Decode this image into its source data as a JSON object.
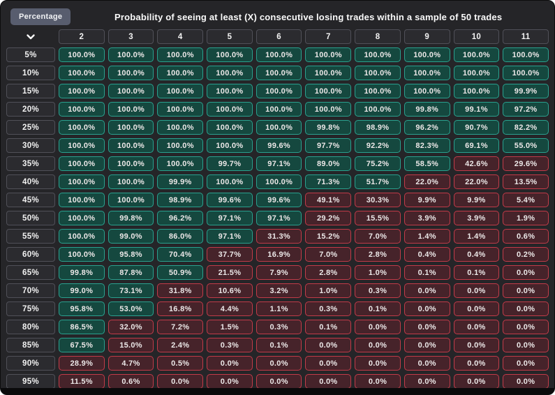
{
  "header": {
    "title": "Probability of seeing at least (X) consecutive losing trades within a sample of 50 trades"
  },
  "toolbar": {
    "percentage_button": "Percentage",
    "column_selector_icon": "chevron-down-icon"
  },
  "colors": {
    "background": "#252528",
    "label_fill": "#2b2b2f",
    "label_border": "#505058",
    "high_fill": "#15483f",
    "high_border": "#2aa18f",
    "low_fill": "#46232a",
    "low_border": "#c23b49",
    "cell_text": "#ece8e8",
    "accent_button": "#585d6e"
  },
  "chart_data": {
    "type": "heatmap",
    "title": "Probability of seeing at least (X) consecutive losing trades within a sample of 50 trades",
    "x_categories": [
      "2",
      "3",
      "4",
      "5",
      "6",
      "7",
      "8",
      "9",
      "10",
      "11"
    ],
    "y_categories": [
      "5%",
      "10%",
      "15%",
      "20%",
      "25%",
      "30%",
      "35%",
      "40%",
      "45%",
      "50%",
      "55%",
      "60%",
      "65%",
      "70%",
      "75%",
      "80%",
      "85%",
      "90%",
      "95%"
    ],
    "value_unit": "percent",
    "color_rule": "value >= 50 teal, value < 50 red",
    "values_percent": [
      [
        100.0,
        100.0,
        100.0,
        100.0,
        100.0,
        100.0,
        100.0,
        100.0,
        100.0,
        100.0
      ],
      [
        100.0,
        100.0,
        100.0,
        100.0,
        100.0,
        100.0,
        100.0,
        100.0,
        100.0,
        100.0
      ],
      [
        100.0,
        100.0,
        100.0,
        100.0,
        100.0,
        100.0,
        100.0,
        100.0,
        100.0,
        99.9
      ],
      [
        100.0,
        100.0,
        100.0,
        100.0,
        100.0,
        100.0,
        100.0,
        99.8,
        99.1,
        97.2
      ],
      [
        100.0,
        100.0,
        100.0,
        100.0,
        100.0,
        99.8,
        98.9,
        96.2,
        90.7,
        82.2
      ],
      [
        100.0,
        100.0,
        100.0,
        100.0,
        99.6,
        97.7,
        92.2,
        82.3,
        69.1,
        55.0
      ],
      [
        100.0,
        100.0,
        100.0,
        99.7,
        97.1,
        89.0,
        75.2,
        58.5,
        42.6,
        29.6
      ],
      [
        100.0,
        100.0,
        99.9,
        100.0,
        100.0,
        71.3,
        51.7,
        22.0,
        22.0,
        13.5
      ],
      [
        100.0,
        100.0,
        98.9,
        99.6,
        99.6,
        49.1,
        30.3,
        9.9,
        9.9,
        5.4
      ],
      [
        100.0,
        99.8,
        96.2,
        97.1,
        97.1,
        29.2,
        15.5,
        3.9,
        3.9,
        1.9
      ],
      [
        100.0,
        99.0,
        86.0,
        97.1,
        31.3,
        15.2,
        7.0,
        1.4,
        1.4,
        0.6
      ],
      [
        100.0,
        95.8,
        70.4,
        37.7,
        16.9,
        7.0,
        2.8,
        0.4,
        0.4,
        0.2
      ],
      [
        99.8,
        87.8,
        50.9,
        21.5,
        7.9,
        2.8,
        1.0,
        0.1,
        0.1,
        0.0
      ],
      [
        99.0,
        73.1,
        31.8,
        10.6,
        3.2,
        1.0,
        0.3,
        0.0,
        0.0,
        0.0
      ],
      [
        95.8,
        53.0,
        16.8,
        4.4,
        1.1,
        0.3,
        0.1,
        0.0,
        0.0,
        0.0
      ],
      [
        86.5,
        32.0,
        7.2,
        1.5,
        0.3,
        0.1,
        0.0,
        0.0,
        0.0,
        0.0
      ],
      [
        67.5,
        15.0,
        2.4,
        0.3,
        0.1,
        0.0,
        0.0,
        0.0,
        0.0,
        0.0
      ],
      [
        28.9,
        4.7,
        0.5,
        0.0,
        0.0,
        0.0,
        0.0,
        0.0,
        0.0,
        0.0
      ],
      [
        11.5,
        0.6,
        0.0,
        0.0,
        0.0,
        0.0,
        0.0,
        0.0,
        0.0,
        0.0
      ]
    ]
  }
}
